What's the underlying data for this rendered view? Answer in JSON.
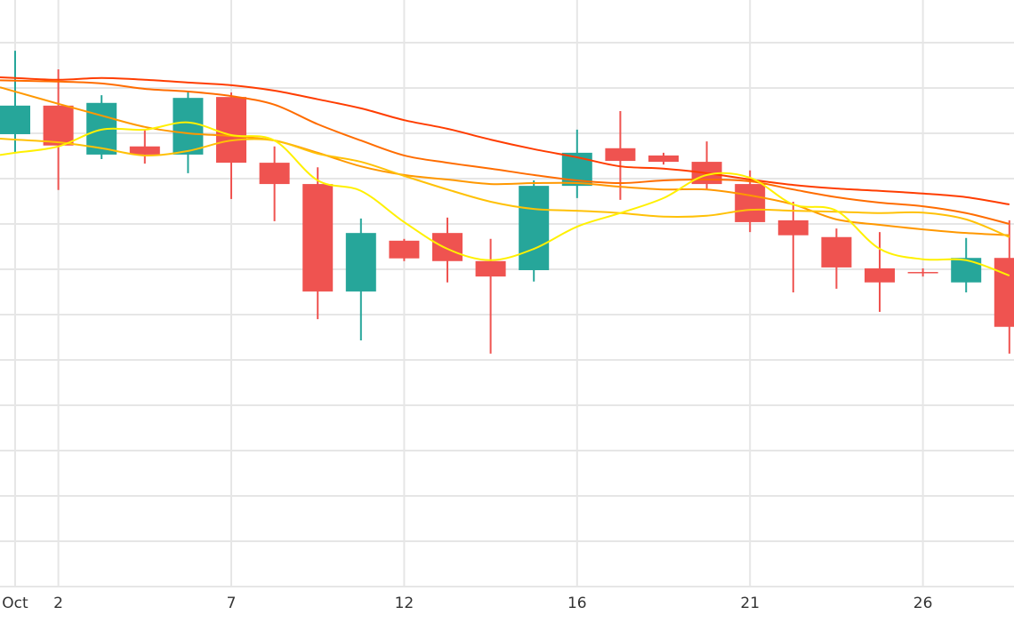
{
  "chart_data": {
    "type": "candlestick",
    "title": "",
    "xlabel": "",
    "ylabel": "",
    "ylim": [
      0,
      129.4
    ],
    "y_grid_step": 10,
    "grid": true,
    "x_ticks": [
      {
        "index": 0,
        "label": "Oct"
      },
      {
        "index": 1,
        "label": "2"
      },
      {
        "index": 5,
        "label": "7"
      },
      {
        "index": 9,
        "label": "12"
      },
      {
        "index": 13,
        "label": "16"
      },
      {
        "index": 17,
        "label": "21"
      },
      {
        "index": 21,
        "label": "26"
      }
    ],
    "colors": {
      "increasing": "#26A69A",
      "decreasing": "#EF5350",
      "grid": "#e6e6e6"
    },
    "candles": [
      {
        "o": 99.8,
        "h": 118.2,
        "l": 95.7,
        "c": 106.1
      },
      {
        "o": 106.1,
        "h": 114.1,
        "l": 87.5,
        "c": 97.3
      },
      {
        "o": 95.3,
        "h": 108.4,
        "l": 94.3,
        "c": 106.7
      },
      {
        "o": 97.1,
        "h": 100.8,
        "l": 93.3,
        "c": 95.3
      },
      {
        "o": 95.3,
        "h": 109.4,
        "l": 91.2,
        "c": 107.8
      },
      {
        "o": 108.0,
        "h": 109.0,
        "l": 85.5,
        "c": 93.5
      },
      {
        "o": 93.5,
        "h": 97.1,
        "l": 80.6,
        "c": 88.8
      },
      {
        "o": 88.8,
        "h": 92.5,
        "l": 59.0,
        "c": 65.1
      },
      {
        "o": 65.1,
        "h": 81.2,
        "l": 54.3,
        "c": 78.0
      },
      {
        "o": 76.3,
        "h": 76.7,
        "l": 71.8,
        "c": 72.4
      },
      {
        "o": 78.0,
        "h": 81.4,
        "l": 67.1,
        "c": 71.8
      },
      {
        "o": 71.8,
        "h": 76.7,
        "l": 51.4,
        "c": 68.4
      },
      {
        "o": 69.8,
        "h": 89.6,
        "l": 67.3,
        "c": 88.4
      },
      {
        "o": 88.4,
        "h": 100.8,
        "l": 85.7,
        "c": 95.7
      },
      {
        "o": 96.7,
        "h": 104.9,
        "l": 85.3,
        "c": 93.9
      },
      {
        "o": 95.1,
        "h": 95.7,
        "l": 93.1,
        "c": 93.7
      },
      {
        "o": 93.7,
        "h": 98.2,
        "l": 87.5,
        "c": 88.8
      },
      {
        "o": 88.8,
        "h": 91.8,
        "l": 78.2,
        "c": 80.4
      },
      {
        "o": 80.8,
        "h": 84.9,
        "l": 64.9,
        "c": 77.5
      },
      {
        "o": 77.1,
        "h": 79.0,
        "l": 65.7,
        "c": 70.4
      },
      {
        "o": 70.2,
        "h": 78.2,
        "l": 60.6,
        "c": 67.1
      },
      {
        "o": 69.4,
        "h": 70.2,
        "l": 68.4,
        "c": 69.2
      },
      {
        "o": 67.1,
        "h": 76.9,
        "l": 64.9,
        "c": 72.5
      },
      {
        "o": 72.5,
        "h": 80.8,
        "l": 51.4,
        "c": 57.3
      }
    ],
    "series": [
      {
        "name": "ma-red",
        "color": "#FF3D00",
        "values": [
          112.2,
          111.8,
          112.2,
          111.8,
          111.2,
          110.6,
          109.4,
          107.5,
          105.5,
          102.9,
          101.0,
          98.6,
          96.5,
          94.7,
          92.7,
          92.2,
          91.2,
          89.8,
          88.6,
          87.8,
          87.3,
          86.7,
          85.9,
          84.3
        ]
      },
      {
        "name": "ma-dark-orange",
        "color": "#FF6D00",
        "values": [
          111.6,
          111.4,
          111.0,
          109.8,
          109.2,
          108.2,
          106.3,
          102.0,
          98.4,
          95.1,
          93.5,
          92.2,
          90.8,
          89.6,
          89.0,
          89.6,
          89.8,
          89.4,
          87.6,
          85.9,
          84.7,
          83.9,
          82.4,
          80.0
        ]
      },
      {
        "name": "ma-orange",
        "color": "#FF9800",
        "values": [
          109.2,
          106.5,
          103.9,
          101.4,
          100.0,
          99.4,
          98.4,
          95.7,
          92.7,
          90.8,
          89.8,
          88.8,
          89.0,
          89.0,
          88.2,
          87.6,
          87.6,
          86.3,
          84.3,
          81.0,
          79.8,
          78.8,
          78.0,
          77.5
        ]
      },
      {
        "name": "ma-amber",
        "color": "#FFC107",
        "values": [
          98.6,
          98.0,
          96.7,
          95.1,
          96.1,
          98.4,
          98.4,
          95.5,
          93.7,
          90.6,
          87.6,
          84.9,
          83.3,
          82.9,
          82.4,
          81.6,
          81.8,
          83.1,
          82.9,
          82.7,
          82.4,
          82.5,
          81.0,
          77.1
        ]
      },
      {
        "name": "ma-yellow",
        "color": "#FFF000",
        "values": [
          95.7,
          97.1,
          100.8,
          100.8,
          102.4,
          99.6,
          98.4,
          89.6,
          87.3,
          80.4,
          74.5,
          72.0,
          74.5,
          79.4,
          82.4,
          85.7,
          90.8,
          90.2,
          84.3,
          82.9,
          74.5,
          72.2,
          72.0,
          68.6
        ]
      }
    ]
  }
}
